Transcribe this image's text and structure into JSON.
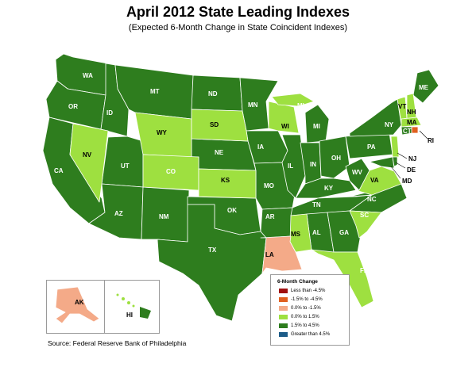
{
  "title": "April 2012 State Leading Indexes",
  "subtitle": "(Expected 6-Month Change in State Coincident Indexes)",
  "source": "Source: Federal Reserve Bank of Philadelphia",
  "legend": {
    "title": "6-Month Change",
    "items": [
      {
        "label": "Less than -4.5%",
        "color": "#a01010"
      },
      {
        "label": "-1.5% to -4.5%",
        "color": "#e06020"
      },
      {
        "label": "0.0% to -1.5%",
        "color": "#f4aa88"
      },
      {
        "label": "0.0% to  1.5%",
        "color": "#9ee040"
      },
      {
        "label": "1.5% to  4.5%",
        "color": "#2e7d1e"
      },
      {
        "label": "Greater than 4.5%",
        "color": "#1c5c88"
      }
    ]
  },
  "colors": {
    "dark_green": "#2e7d1e",
    "light_green": "#9ee040",
    "salmon": "#f4aa88",
    "orange": "#e06020"
  },
  "state_labels": {
    "WA": "WA",
    "OR": "OR",
    "CA": "CA",
    "ID": "ID",
    "NV": "NV",
    "MT": "MT",
    "WY": "WY",
    "UT": "UT",
    "AZ": "AZ",
    "CO": "CO",
    "NM": "NM",
    "ND": "ND",
    "SD": "SD",
    "NE": "NE",
    "KS": "KS",
    "OK": "OK",
    "TX": "TX",
    "MN": "MN",
    "IA": "IA",
    "MO": "MO",
    "AR": "AR",
    "LA": "LA",
    "WI": "WI",
    "IL": "IL",
    "MI_UP": "MI",
    "MI": "MI",
    "IN": "IN",
    "OH": "OH",
    "KY": "KY",
    "TN": "TN",
    "MS": "MS",
    "AL": "AL",
    "GA": "GA",
    "FL": "FL",
    "SC": "SC",
    "NC": "NC",
    "VA": "VA",
    "WV": "WV",
    "PA": "PA",
    "NY": "NY",
    "VT": "VT",
    "NH": "NH",
    "ME": "ME",
    "MA": "MA",
    "CT": "CT",
    "RI": "RI",
    "NJ": "NJ",
    "DE": "DE",
    "MD": "MD",
    "AK": "AK",
    "HI": "HI"
  }
}
